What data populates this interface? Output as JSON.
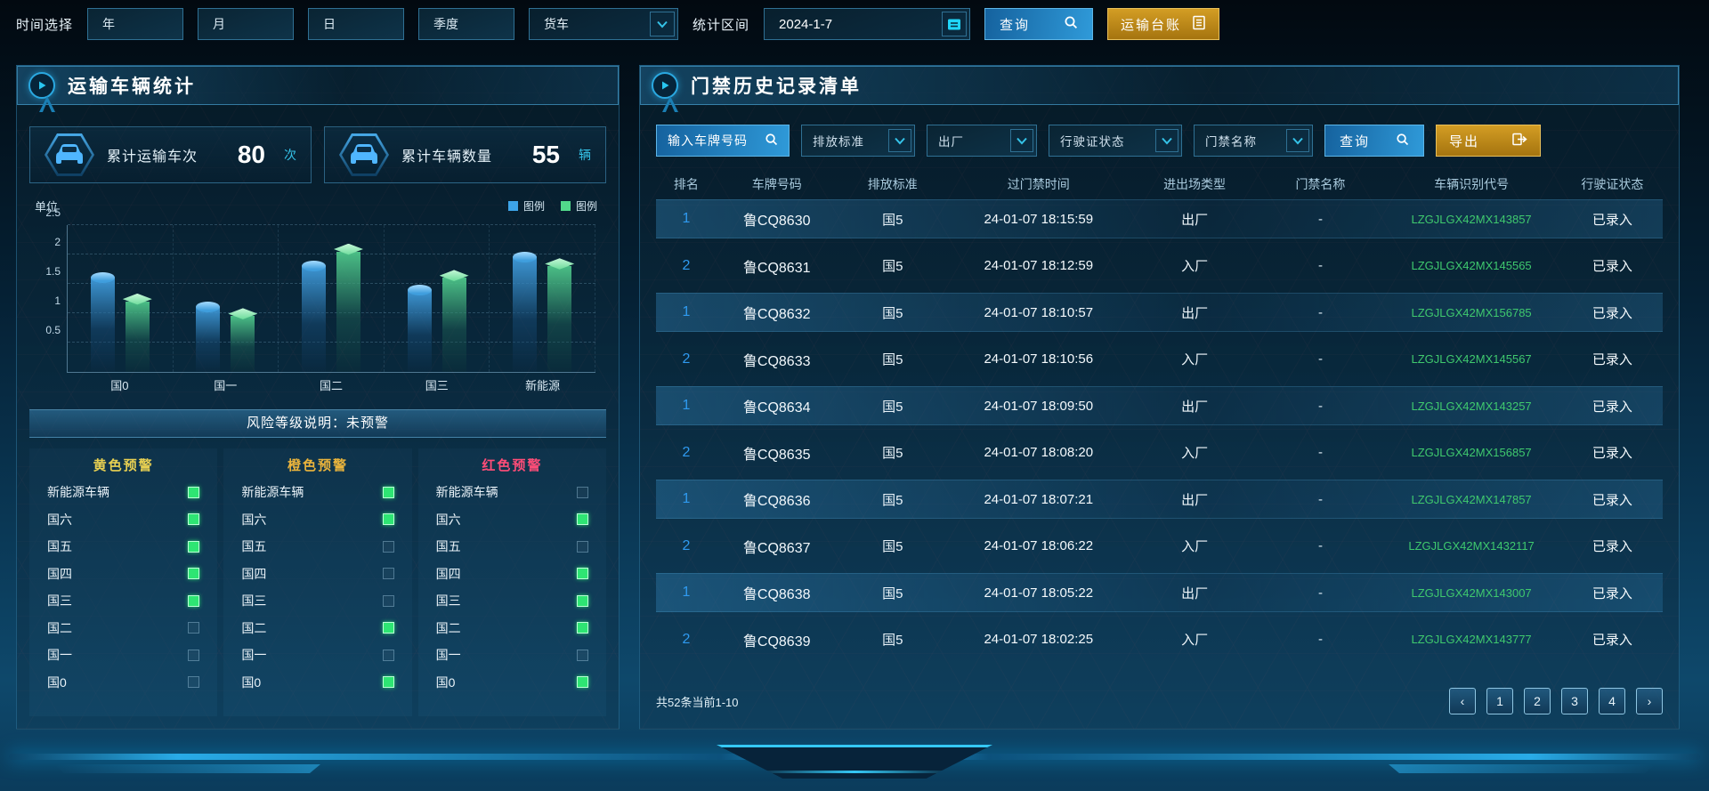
{
  "topbar": {
    "time_label": "时间选择",
    "time_buttons": [
      "年",
      "月",
      "日",
      "季度"
    ],
    "vehicle_type": "货车",
    "range_label": "统计区间",
    "date_value": "2024-1-7",
    "query_label": "查询",
    "ledger_label": "运输台账"
  },
  "left_panel": {
    "title": "运输车辆统计",
    "stats": [
      {
        "label": "累计运输车次",
        "value": "80",
        "unit": "次"
      },
      {
        "label": "累计车辆数量",
        "value": "55",
        "unit": "辆"
      }
    ],
    "risk_banner": "风险等级说明：未预警",
    "warning_columns": [
      {
        "title": "黄色预警",
        "color": "#e8d052",
        "items": [
          {
            "label": "新能源车辆",
            "checked": true
          },
          {
            "label": "国六",
            "checked": true
          },
          {
            "label": "国五",
            "checked": true
          },
          {
            "label": "国四",
            "checked": true
          },
          {
            "label": "国三",
            "checked": true
          },
          {
            "label": "国二",
            "checked": false
          },
          {
            "label": "国一",
            "checked": false
          },
          {
            "label": "国0",
            "checked": false
          }
        ]
      },
      {
        "title": "橙色预警",
        "color": "#eab43c",
        "items": [
          {
            "label": "新能源车辆",
            "checked": true
          },
          {
            "label": "国六",
            "checked": true
          },
          {
            "label": "国五",
            "checked": false
          },
          {
            "label": "国四",
            "checked": false
          },
          {
            "label": "国三",
            "checked": false
          },
          {
            "label": "国二",
            "checked": true
          },
          {
            "label": "国一",
            "checked": false
          },
          {
            "label": "国0",
            "checked": true
          }
        ]
      },
      {
        "title": "红色预警",
        "color": "#ff4d78",
        "items": [
          {
            "label": "新能源车辆",
            "checked": false
          },
          {
            "label": "国六",
            "checked": true
          },
          {
            "label": "国五",
            "checked": false
          },
          {
            "label": "国四",
            "checked": true
          },
          {
            "label": "国三",
            "checked": true
          },
          {
            "label": "国二",
            "checked": true
          },
          {
            "label": "国一",
            "checked": false
          },
          {
            "label": "国0",
            "checked": true
          }
        ]
      }
    ]
  },
  "chart_data": {
    "type": "bar",
    "title": "",
    "ylabel": "单位",
    "categories": [
      "国0",
      "国一",
      "国二",
      "国三",
      "新能源"
    ],
    "series": [
      {
        "name": "图例",
        "color": "#3da4e8",
        "values": [
          1.6,
          1.1,
          1.8,
          1.4,
          1.95
        ]
      },
      {
        "name": "图例",
        "color": "#52d98b",
        "values": [
          1.2,
          0.95,
          2.05,
          1.6,
          1.8
        ]
      }
    ],
    "ylim": [
      0,
      2.5
    ],
    "yticks": [
      0.5,
      1,
      1.5,
      2,
      2.5
    ],
    "grid": true,
    "legend_position": "top-right"
  },
  "right_panel": {
    "title": "门禁历史记录清单",
    "filters": {
      "plate_placeholder": "输入车牌号码",
      "dropdowns": [
        "排放标准",
        "出厂",
        "行驶证状态",
        "门禁名称"
      ],
      "query_label": "查询",
      "export_label": "导出"
    },
    "table": {
      "headers": [
        "排名",
        "车牌号码",
        "排放标准",
        "过门禁时间",
        "进出场类型",
        "门禁名称",
        "车辆识别代号",
        "行驶证状态"
      ],
      "rows": [
        [
          "1",
          "鲁CQ8630",
          "国5",
          "24-01-07 18:15:59",
          "出厂",
          "-",
          "LZGJLGX42MX143857",
          "已录入"
        ],
        [
          "2",
          "鲁CQ8631",
          "国5",
          "24-01-07 18:12:59",
          "入厂",
          "-",
          "LZGJLGX42MX145565",
          "已录入"
        ],
        [
          "1",
          "鲁CQ8632",
          "国5",
          "24-01-07 18:10:57",
          "出厂",
          "-",
          "LZGJLGX42MX156785",
          "已录入"
        ],
        [
          "2",
          "鲁CQ8633",
          "国5",
          "24-01-07 18:10:56",
          "入厂",
          "-",
          "LZGJLGX42MX145567",
          "已录入"
        ],
        [
          "1",
          "鲁CQ8634",
          "国5",
          "24-01-07 18:09:50",
          "出厂",
          "-",
          "LZGJLGX42MX143257",
          "已录入"
        ],
        [
          "2",
          "鲁CQ8635",
          "国5",
          "24-01-07 18:08:20",
          "入厂",
          "-",
          "LZGJLGX42MX156857",
          "已录入"
        ],
        [
          "1",
          "鲁CQ8636",
          "国5",
          "24-01-07 18:07:21",
          "出厂",
          "-",
          "LZGJLGX42MX147857",
          "已录入"
        ],
        [
          "2",
          "鲁CQ8637",
          "国5",
          "24-01-07 18:06:22",
          "入厂",
          "-",
          "LZGJLGX42MX1432117",
          "已录入"
        ],
        [
          "1",
          "鲁CQ8638",
          "国5",
          "24-01-07 18:05:22",
          "出厂",
          "-",
          "LZGJLGX42MX143007",
          "已录入"
        ],
        [
          "2",
          "鲁CQ8639",
          "国5",
          "24-01-07 18:02:25",
          "入厂",
          "-",
          "LZGJLGX42MX143777",
          "已录入"
        ]
      ]
    },
    "pagination": {
      "summary": "共52条当前1-10",
      "prev": "‹",
      "next": "›",
      "pages": [
        "1",
        "2",
        "3",
        "4"
      ]
    }
  }
}
